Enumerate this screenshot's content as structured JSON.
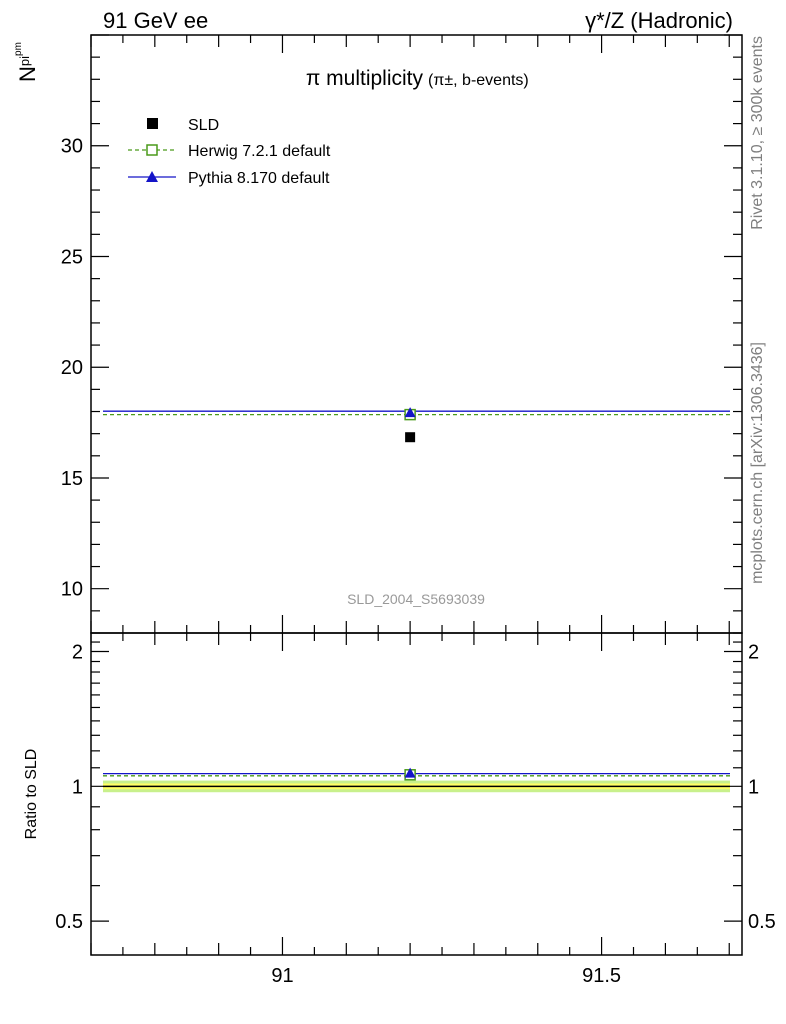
{
  "header": {
    "left": "91 GeV ee",
    "right": "γ*/Z (Hadronic)"
  },
  "side_text": {
    "rivet": "Rivet 3.1.10, ≥ 300k events",
    "mcplots": "mcplots.cern.ch [arXiv:1306.3436]"
  },
  "watermark": "SLD_2004_S5693039",
  "colors": {
    "sld": "#000000",
    "herwig": "#4a9a1a",
    "pythia": "#1414c8",
    "band_inner": "#ffff66",
    "band_outer": "#c8f08c"
  },
  "chart_data": [
    {
      "type": "scatter",
      "title": "π multiplicity",
      "title_suffix": "(π±, b-events)",
      "ylabel": "N_pi^pm",
      "xlim": [
        90.7,
        91.72
      ],
      "ylim": [
        8,
        35
      ],
      "yticks": [
        10,
        15,
        20,
        25,
        30
      ],
      "ytick_labels": [
        "10",
        "15",
        "20",
        "25",
        "30"
      ],
      "legend_position": "top-left",
      "series": [
        {
          "name": "SLD",
          "marker": "square-filled",
          "x": [
            91.2
          ],
          "y": [
            16.84
          ]
        },
        {
          "name": "Herwig 7.2.1 default",
          "marker": "square-open",
          "line": "dashed",
          "x": [
            91.2
          ],
          "y": [
            17.86
          ],
          "x_range": [
            90.7,
            91.72
          ]
        },
        {
          "name": "Pythia 8.170 default",
          "marker": "triangle-filled",
          "line": "solid",
          "x": [
            91.2
          ],
          "y": [
            17.88
          ],
          "x_range": [
            90.7,
            91.72
          ]
        }
      ]
    },
    {
      "type": "scatter",
      "ylabel": "Ratio to SLD",
      "xlim": [
        90.7,
        91.72
      ],
      "ylim": [
        0.42,
        2.2
      ],
      "yticks": [
        0.5,
        1,
        2
      ],
      "ytick_labels": [
        "0.5",
        "1",
        "2"
      ],
      "xticks": [
        91,
        91.5
      ],
      "xtick_labels": [
        "91",
        "91.5"
      ],
      "log_scale_y": true,
      "reference_band": {
        "y": 1.0,
        "inner": [
          0.985,
          1.015
        ],
        "outer": [
          0.97,
          1.03
        ]
      },
      "series": [
        {
          "name": "Herwig 7.2.1 default",
          "x": [
            91.2
          ],
          "y": [
            1.061
          ]
        },
        {
          "name": "Pythia 8.170 default",
          "x": [
            91.2
          ],
          "y": [
            1.062
          ]
        }
      ]
    }
  ]
}
